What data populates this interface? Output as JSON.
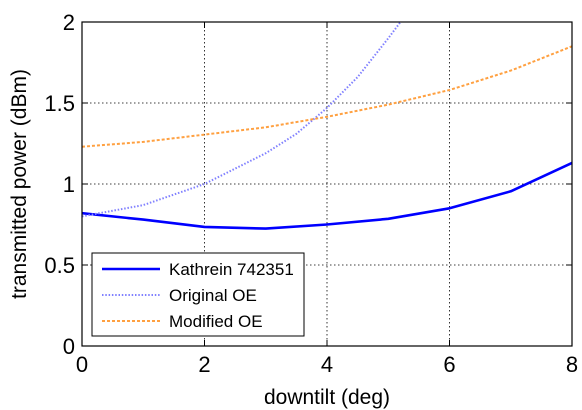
{
  "chart_data": {
    "type": "line",
    "xlabel": "downtilt (deg)",
    "ylabel": "transmitted power (dBm)",
    "xlim": [
      0,
      8
    ],
    "ylim": [
      0,
      2
    ],
    "x_ticks": [
      0,
      2,
      4,
      6,
      8
    ],
    "y_ticks": [
      0,
      0.5,
      1,
      1.5,
      2
    ],
    "x_tick_labels": [
      "0",
      "2",
      "4",
      "6",
      "8"
    ],
    "y_tick_labels": [
      "0",
      "0.5",
      "1",
      "1.5",
      "2"
    ],
    "grid": true,
    "legend_position": "bottom-left",
    "series": [
      {
        "name": "Kathrein 742351",
        "color": "#0000ff",
        "style": "solid",
        "x": [
          0,
          1,
          2,
          3,
          4,
          5,
          6,
          7,
          8
        ],
        "y": [
          0.82,
          0.78,
          0.735,
          0.725,
          0.75,
          0.785,
          0.85,
          0.955,
          1.13
        ]
      },
      {
        "name": "Original OE",
        "color": "#8080ff",
        "style": "dotted",
        "x": [
          0,
          1,
          2,
          3,
          3.5,
          4,
          4.5,
          5,
          5.2
        ],
        "y": [
          0.8,
          0.87,
          1.0,
          1.19,
          1.31,
          1.47,
          1.66,
          1.9,
          2.0
        ]
      },
      {
        "name": "Modified OE",
        "color": "#ffa040",
        "style": "dashed",
        "x": [
          0,
          1,
          2,
          3,
          4,
          5,
          6,
          7,
          8
        ],
        "y": [
          1.23,
          1.26,
          1.305,
          1.35,
          1.415,
          1.49,
          1.58,
          1.7,
          1.85
        ]
      }
    ]
  }
}
